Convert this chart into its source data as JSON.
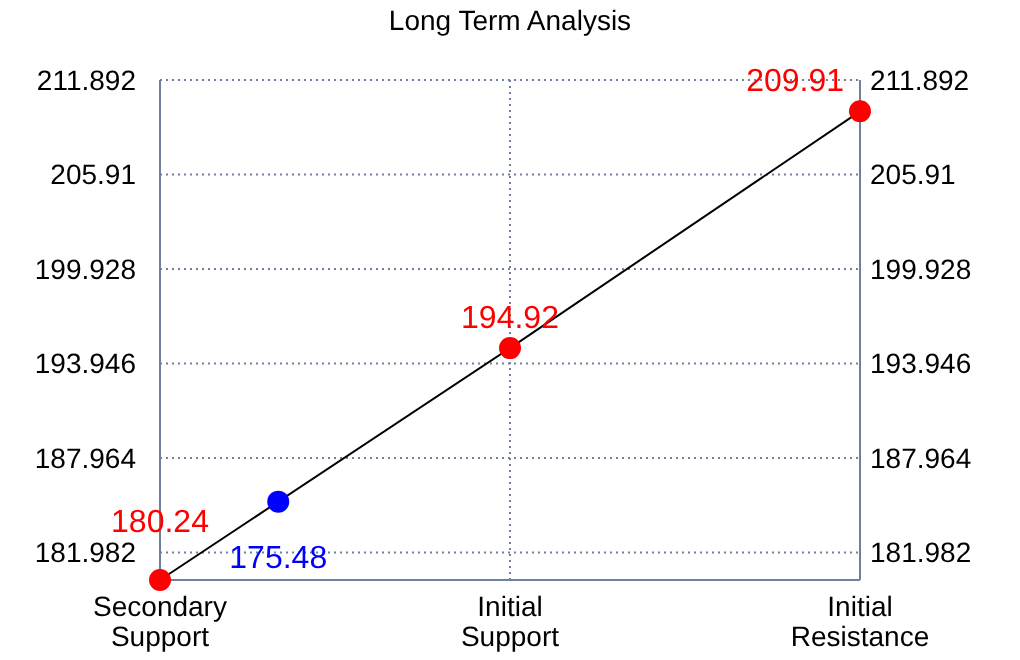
{
  "chart_data": {
    "type": "line",
    "title": "Long Term Analysis",
    "categories": [
      "Secondary Support",
      "Initial Support",
      "Initial Resistance"
    ],
    "series": [
      {
        "color": "#ff0000",
        "values": [
          180.24,
          194.92,
          209.91
        ]
      }
    ],
    "ylim": [
      180.24,
      211.892
    ],
    "yticks": [
      181.982,
      187.964,
      193.946,
      199.928,
      205.91,
      211.892
    ],
    "y2lim": [
      180.24,
      211.892
    ],
    "y2ticks": [
      181.982,
      187.964,
      193.946,
      199.928,
      205.91,
      211.892
    ],
    "grid": true,
    "marker": "circle",
    "data_labels": true,
    "annotations": [
      {
        "text": "175.48",
        "y": 185.2
      }
    ]
  }
}
